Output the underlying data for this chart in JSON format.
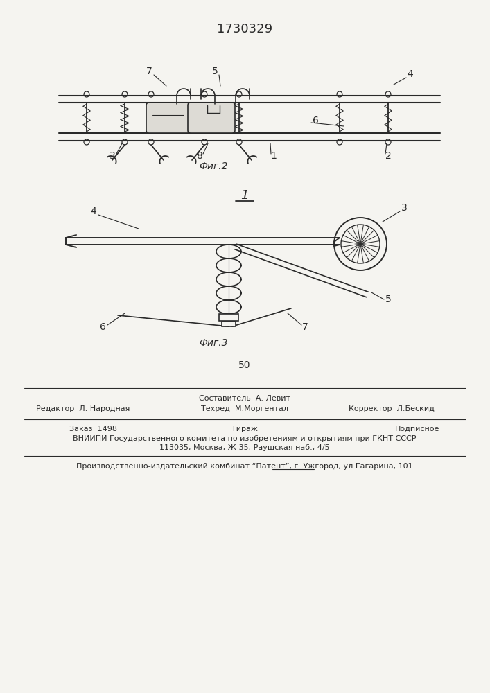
{
  "patent_number": "1730329",
  "page_number": "50",
  "fig2_caption": "Фиг.2",
  "fig3_caption": "Фиг.3",
  "fig1_label": "1",
  "background_color": "#f5f4f0",
  "line_color": "#2a2a2a",
  "text_color": "#2a2a2a",
  "footer_line1_left": "Редактор  Л. Народная",
  "footer_line1_center_top": "Составитель  А. Левит",
  "footer_line1_center_bot": "Техред  М.Моргентал",
  "footer_line1_right": "Корректор  Л.Бескид",
  "footer_line2_left": "Заказ  1498",
  "footer_line2_center": "Тираж",
  "footer_line2_right": "Подписное",
  "footer_line3": "ВНИИПИ Государственного комитета по изобретениям и открытиям при ГКНТ СССР",
  "footer_line4": "113035, Москва, Ж-35, Раушская наб., 4/5",
  "footer_line5": "Производственно-издательский комбинат “Патент”, г. Ужгород, ул.Гагарина, 101"
}
